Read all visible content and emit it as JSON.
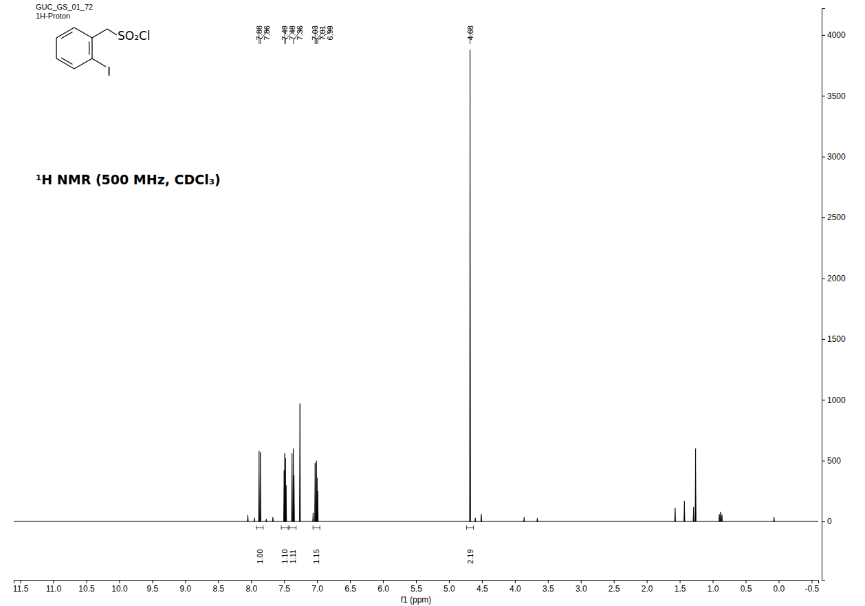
{
  "chart_data": {
    "type": "spectrum",
    "title": "¹H NMR (500 MHz, CDCl₃)",
    "annotations": [
      "GUC_GS_01_72",
      "1H-Proton"
    ],
    "structure": {
      "labels": [
        "SO₂Cl",
        "I"
      ]
    },
    "x_label": "f1 (ppm)",
    "color": "#000000",
    "x": [
      8.05,
      7.95,
      7.88,
      7.86,
      7.77,
      7.67,
      7.5,
      7.49,
      7.48,
      7.47,
      7.38,
      7.36,
      7.35,
      7.26,
      7.06,
      7.03,
      7.01,
      7.0,
      6.99,
      4.68,
      4.6,
      4.51,
      3.86,
      3.66,
      1.57,
      1.43,
      1.29,
      1.26,
      0.9,
      0.88,
      0.86,
      0.07
    ],
    "values": [
      55,
      30,
      580,
      570,
      20,
      35,
      420,
      560,
      520,
      300,
      560,
      600,
      380,
      970,
      70,
      480,
      500,
      360,
      250,
      3880,
      30,
      60,
      35,
      30,
      110,
      170,
      120,
      600,
      60,
      80,
      55,
      35
    ],
    "peak_labels": [
      7.88,
      7.86,
      7.49,
      7.48,
      7.36,
      7.03,
      7.01,
      6.99,
      4.68
    ],
    "integrals": {
      "x": [
        7.87,
        7.49,
        7.37,
        7.01,
        4.68
      ],
      "values": [
        1.0,
        1.1,
        1.11,
        1.15,
        2.19
      ],
      "value_labels": [
        "1.00",
        "1.10",
        "1.11",
        "1.15",
        "2.19"
      ]
    },
    "xlim": [
      11.6,
      -0.6
    ],
    "xticks": [
      11.5,
      {
        "value": 11,
        "label": "11.0"
      },
      10.5,
      {
        "value": 10,
        "label": "10.0"
      },
      9.5,
      {
        "value": 9,
        "label": "9.0"
      },
      8.5,
      {
        "value": 8,
        "label": "8.0"
      },
      7.5,
      {
        "value": 7,
        "label": "7.0"
      },
      6.5,
      {
        "value": 6,
        "label": "6.0"
      },
      5.5,
      {
        "value": 5,
        "label": "5.0"
      },
      4.5,
      {
        "value": 4,
        "label": "4.0"
      },
      3.5,
      {
        "value": 3,
        "label": "3.0"
      },
      2.5,
      {
        "value": 2,
        "label": "2.0"
      },
      1.5,
      {
        "value": 1,
        "label": "1.0"
      },
      0.5,
      {
        "value": 0,
        "label": "0.0"
      },
      -0.5
    ],
    "ylim": [
      -480,
      4220
    ],
    "yticks": [
      0,
      500,
      1000,
      1500,
      2000,
      2500,
      3000,
      3500,
      4000
    ],
    "grid": false,
    "tick_labels": true
  }
}
